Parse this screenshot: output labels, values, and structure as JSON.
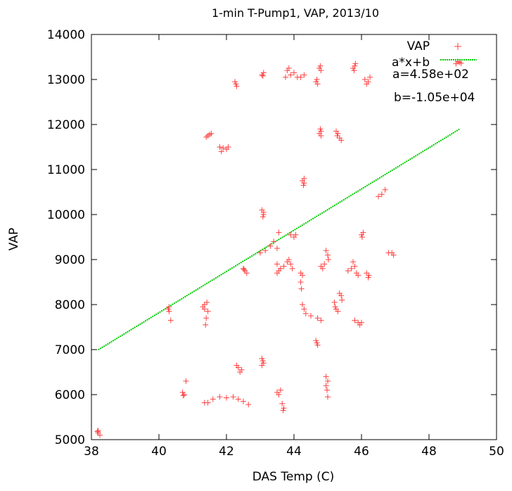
{
  "chart_data": {
    "type": "scatter",
    "title": "1-min T-Pump1, VAP, 2013/10",
    "xlabel": "DAS Temp (C)",
    "ylabel": "VAP",
    "xlim": [
      38,
      50
    ],
    "ylim": [
      5000,
      14000
    ],
    "xticks": [
      38,
      40,
      42,
      44,
      46,
      48,
      50
    ],
    "yticks": [
      5000,
      6000,
      7000,
      8000,
      9000,
      10000,
      11000,
      12000,
      13000,
      14000
    ],
    "legend_position": "top-right",
    "grid": false,
    "series": [
      {
        "name": "VAP",
        "marker": "plus",
        "color": "#ff0000",
        "points": [
          [
            38.2,
            5200
          ],
          [
            38.2,
            5150
          ],
          [
            38.25,
            5100
          ],
          [
            38.18,
            5180
          ],
          [
            40.3,
            7950
          ],
          [
            40.3,
            7850
          ],
          [
            40.35,
            7650
          ],
          [
            40.28,
            7900
          ],
          [
            40.7,
            6050
          ],
          [
            40.75,
            6000
          ],
          [
            40.8,
            6300
          ],
          [
            40.72,
            5980
          ],
          [
            41.35,
            8000
          ],
          [
            41.35,
            7900
          ],
          [
            41.4,
            7700
          ],
          [
            41.38,
            7550
          ],
          [
            41.42,
            8050
          ],
          [
            41.3,
            7950
          ],
          [
            41.45,
            7850
          ],
          [
            41.35,
            5820
          ],
          [
            41.45,
            5820
          ],
          [
            41.6,
            5900
          ],
          [
            41.8,
            5950
          ],
          [
            42.0,
            5930
          ],
          [
            42.2,
            5950
          ],
          [
            42.35,
            5900
          ],
          [
            42.5,
            5850
          ],
          [
            42.65,
            5780
          ],
          [
            41.4,
            11720
          ],
          [
            41.5,
            11780
          ],
          [
            41.55,
            11800
          ],
          [
            41.45,
            11750
          ],
          [
            41.8,
            11500
          ],
          [
            41.85,
            11400
          ],
          [
            42.0,
            11450
          ],
          [
            42.05,
            11500
          ],
          [
            41.9,
            11480
          ],
          [
            42.25,
            12950
          ],
          [
            42.3,
            12850
          ],
          [
            42.28,
            12900
          ],
          [
            42.3,
            6650
          ],
          [
            42.35,
            6600
          ],
          [
            42.4,
            6500
          ],
          [
            42.45,
            6550
          ],
          [
            42.5,
            8800
          ],
          [
            42.55,
            8750
          ],
          [
            42.6,
            8700
          ],
          [
            42.52,
            8780
          ],
          [
            43.05,
            13100
          ],
          [
            43.1,
            13150
          ],
          [
            43.08,
            13080
          ],
          [
            43.05,
            10100
          ],
          [
            43.1,
            10000
          ],
          [
            43.08,
            9950
          ],
          [
            43.1,
            10050
          ],
          [
            43.05,
            6800
          ],
          [
            43.1,
            6700
          ],
          [
            43.05,
            6650
          ],
          [
            43.08,
            6750
          ],
          [
            43.0,
            9150
          ],
          [
            43.15,
            9200
          ],
          [
            43.3,
            9300
          ],
          [
            43.5,
            9250
          ],
          [
            43.55,
            9600
          ],
          [
            43.4,
            9400
          ],
          [
            43.5,
            8900
          ],
          [
            43.55,
            8750
          ],
          [
            43.6,
            8800
          ],
          [
            43.7,
            8850
          ],
          [
            43.5,
            8700
          ],
          [
            43.5,
            6050
          ],
          [
            43.55,
            6000
          ],
          [
            43.6,
            6100
          ],
          [
            43.65,
            5800
          ],
          [
            43.7,
            5700
          ],
          [
            43.68,
            5650
          ],
          [
            43.8,
            13200
          ],
          [
            43.85,
            13250
          ],
          [
            43.9,
            13100
          ],
          [
            44.0,
            13150
          ],
          [
            43.75,
            13050
          ],
          [
            44.1,
            13050
          ],
          [
            44.2,
            13050
          ],
          [
            44.3,
            13100
          ],
          [
            43.85,
            9000
          ],
          [
            43.9,
            8900
          ],
          [
            43.95,
            8800
          ],
          [
            43.8,
            8950
          ],
          [
            43.9,
            9550
          ],
          [
            44.0,
            9500
          ],
          [
            44.05,
            9550
          ],
          [
            44.2,
            8700
          ],
          [
            44.25,
            8650
          ],
          [
            44.2,
            8500
          ],
          [
            44.22,
            8350
          ],
          [
            44.25,
            10750
          ],
          [
            44.3,
            10700
          ],
          [
            44.28,
            10650
          ],
          [
            44.3,
            10800
          ],
          [
            44.25,
            8000
          ],
          [
            44.3,
            7900
          ],
          [
            44.35,
            7800
          ],
          [
            44.5,
            7750
          ],
          [
            44.7,
            7700
          ],
          [
            44.8,
            7650
          ],
          [
            44.65,
            12950
          ],
          [
            44.7,
            12900
          ],
          [
            44.68,
            13000
          ],
          [
            44.75,
            13250
          ],
          [
            44.8,
            13200
          ],
          [
            44.78,
            13300
          ],
          [
            44.75,
            11800
          ],
          [
            44.8,
            11850
          ],
          [
            44.78,
            11900
          ],
          [
            44.8,
            11750
          ],
          [
            44.8,
            8850
          ],
          [
            44.85,
            8800
          ],
          [
            44.9,
            8900
          ],
          [
            44.65,
            7200
          ],
          [
            44.7,
            7100
          ],
          [
            44.68,
            7150
          ],
          [
            44.95,
            9200
          ],
          [
            45.0,
            9100
          ],
          [
            45.02,
            9000
          ],
          [
            44.95,
            6400
          ],
          [
            45.0,
            6300
          ],
          [
            44.95,
            6200
          ],
          [
            44.98,
            6100
          ],
          [
            45.0,
            5950
          ],
          [
            45.2,
            8050
          ],
          [
            45.25,
            7900
          ],
          [
            45.3,
            7850
          ],
          [
            45.22,
            7950
          ],
          [
            45.25,
            11850
          ],
          [
            45.3,
            11800
          ],
          [
            45.35,
            11700
          ],
          [
            45.4,
            11650
          ],
          [
            45.28,
            11750
          ],
          [
            45.35,
            8250
          ],
          [
            45.4,
            8200
          ],
          [
            45.42,
            8100
          ],
          [
            45.6,
            8750
          ],
          [
            45.7,
            8800
          ],
          [
            45.8,
            8850
          ],
          [
            45.75,
            8950
          ],
          [
            45.85,
            8700
          ],
          [
            45.9,
            8650
          ],
          [
            45.75,
            13250
          ],
          [
            45.8,
            13300
          ],
          [
            45.78,
            13200
          ],
          [
            45.82,
            13350
          ],
          [
            45.8,
            7650
          ],
          [
            45.9,
            7600
          ],
          [
            46.0,
            7600
          ],
          [
            45.95,
            7550
          ],
          [
            46.0,
            9550
          ],
          [
            46.05,
            9600
          ],
          [
            46.02,
            9500
          ],
          [
            46.1,
            13000
          ],
          [
            46.2,
            12950
          ],
          [
            46.25,
            13050
          ],
          [
            46.15,
            12900
          ],
          [
            46.15,
            8700
          ],
          [
            46.2,
            8600
          ],
          [
            46.22,
            8650
          ],
          [
            46.5,
            10400
          ],
          [
            46.6,
            10450
          ],
          [
            46.7,
            10550
          ],
          [
            46.8,
            9150
          ],
          [
            46.9,
            9150
          ],
          [
            46.95,
            9100
          ],
          [
            48.8,
            13350
          ],
          [
            48.85,
            13400
          ],
          [
            48.9,
            13380
          ],
          [
            48.95,
            13360
          ]
        ]
      },
      {
        "name": "a*x+b",
        "color": "#00cc00",
        "style": "dashed",
        "x_range": [
          38.2,
          48.9
        ],
        "a": 458,
        "b": -10500
      }
    ],
    "annotations": [
      "a=4.58e+02",
      "b=-1.05e+04"
    ]
  }
}
